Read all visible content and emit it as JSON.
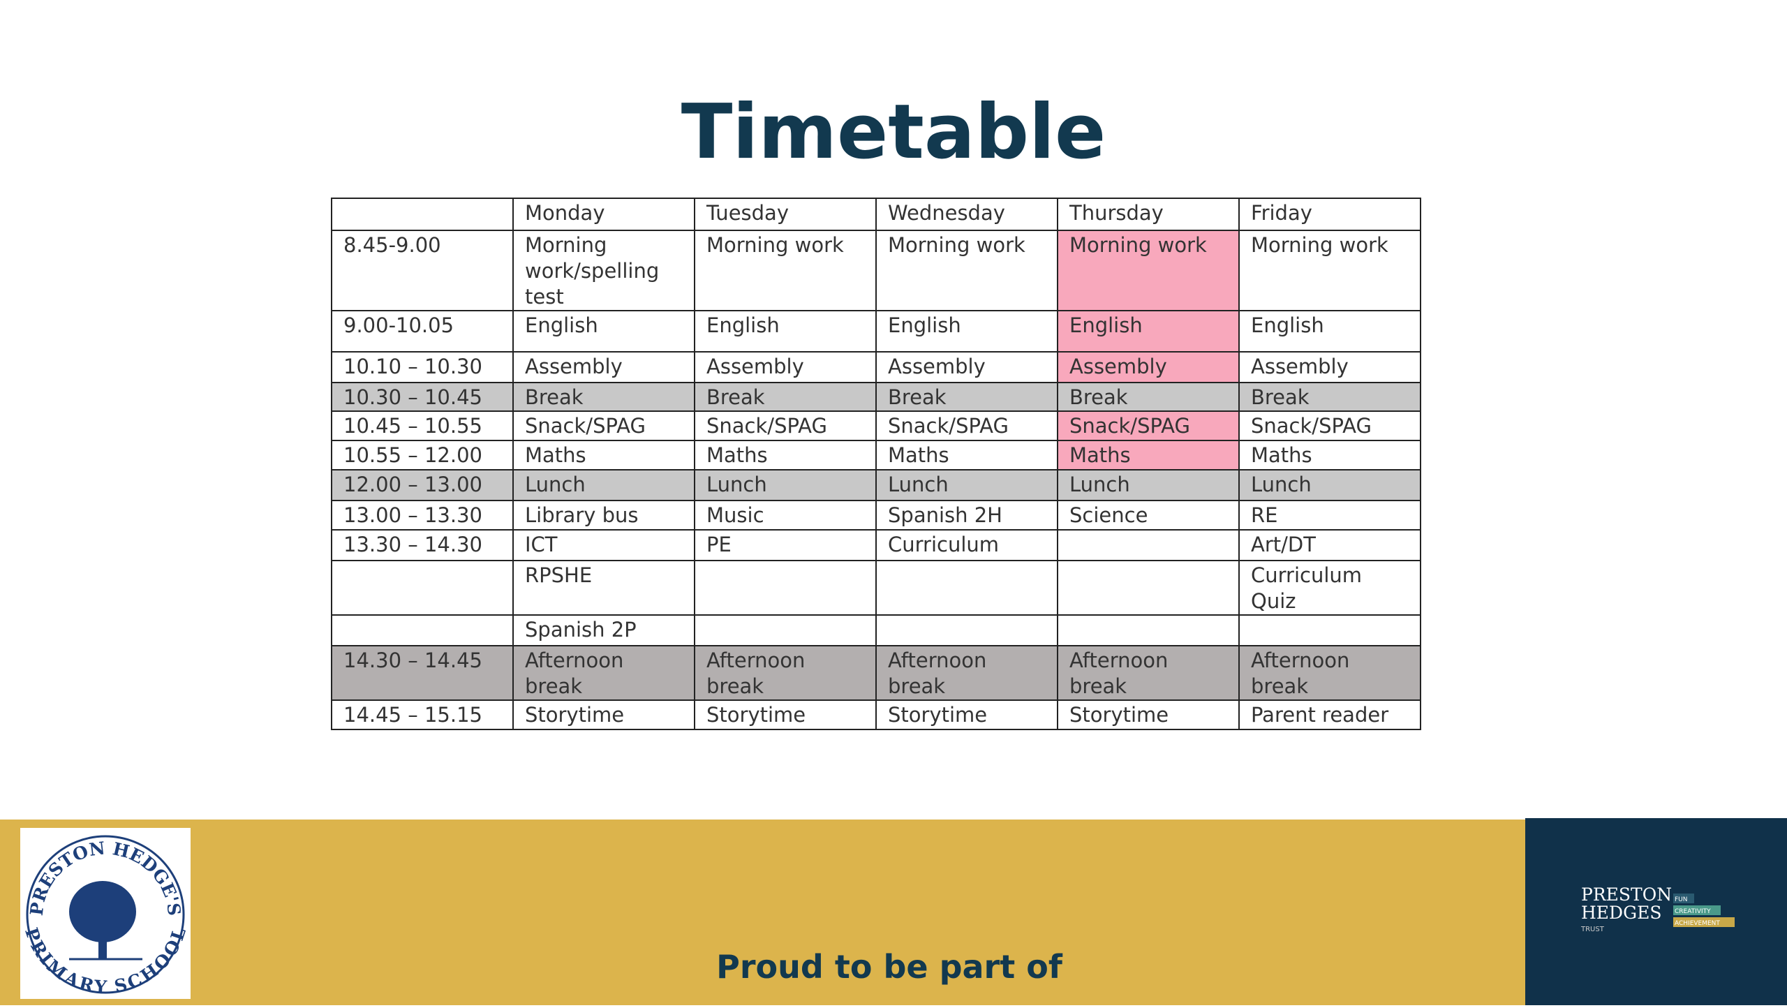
{
  "title": "Timetable",
  "table": {
    "header": [
      null,
      "Monday",
      "Tuesday",
      "Wednesday",
      "Thursday",
      "Friday"
    ],
    "rows": [
      [
        "8.45-9.00",
        "Morning work/spelling test",
        "Morning work",
        "Morning work",
        "Morning work",
        "Morning work"
      ],
      [
        "9.00-10.05",
        "English",
        "English",
        "English",
        "English",
        "English"
      ],
      [
        "10.10 – 10.30",
        "Assembly",
        "Assembly",
        "Assembly",
        "Assembly",
        "Assembly"
      ],
      [
        "10.30 – 10.45",
        "Break",
        "Break",
        "Break",
        "Break",
        "Break"
      ],
      [
        "10.45 – 10.55",
        "Snack/SPAG",
        "Snack/SPAG",
        "Snack/SPAG",
        "Snack/SPAG",
        "Snack/SPAG"
      ],
      [
        "10.55 – 12.00",
        "Maths",
        "Maths",
        "Maths",
        "Maths",
        "Maths"
      ],
      [
        "12.00 – 13.00",
        "Lunch",
        "Lunch",
        "Lunch",
        "Lunch",
        "Lunch"
      ],
      [
        "13.00 – 13.30",
        "Library bus",
        "Music",
        "Spanish 2H",
        "Science",
        "RE"
      ],
      [
        "13.30 – 14.30",
        "ICT",
        "PE",
        "Curriculum",
        null,
        "Art/DT"
      ],
      [
        null,
        "RPSHE",
        null,
        null,
        null,
        "Curriculum Quiz"
      ],
      [
        null,
        "Spanish 2P",
        null,
        null,
        null,
        null
      ],
      [
        "14.30 – 14.45",
        "Afternoon break",
        "Afternoon break",
        "Afternoon break",
        "Afternoon break",
        "Afternoon break"
      ],
      [
        "14.45 – 15.15",
        "Storytime",
        "Storytime",
        "Storytime",
        "Storytime",
        "Parent reader"
      ]
    ]
  },
  "footer": {
    "text": "Proud to be part of",
    "school_logo": {
      "top": "PRESTON HEDGE'S",
      "bottom": "PRIMARY SCHOOL"
    },
    "trust_logo": {
      "name_line1": "PRESTON",
      "name_line2": "HEDGES",
      "sub": "TRUST",
      "tags": [
        "FUN",
        "CREATIVITY",
        "ACHIEVEMENT"
      ]
    }
  }
}
